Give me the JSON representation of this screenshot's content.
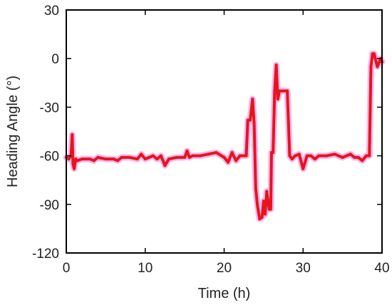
{
  "chart_data": {
    "type": "line",
    "title": "",
    "xlabel": "Time (h)",
    "ylabel": "Heading Angle (°)",
    "xlim": [
      0,
      40
    ],
    "ylim": [
      -120,
      30
    ],
    "xticks": [
      0,
      10,
      20,
      30,
      40
    ],
    "yticks": [
      -120,
      -90,
      -60,
      -30,
      0,
      30
    ],
    "xtick_labels": [
      "0",
      "10",
      "20",
      "30",
      "40"
    ],
    "ytick_labels": [
      "-120",
      "-90",
      "-60",
      "-30",
      "0",
      "30"
    ],
    "grid": false,
    "legend": "none",
    "series": [
      {
        "color": "#e8141b",
        "halo_color": "#f4b8f0",
        "x": [
          0,
          0.3,
          0.6,
          0.75,
          0.85,
          1.0,
          1.2,
          1.4,
          2,
          3,
          3.5,
          4,
          5,
          6,
          6.5,
          7,
          8,
          9,
          9.5,
          10,
          10.5,
          11,
          11.5,
          12,
          12.5,
          13,
          14,
          15,
          15.3,
          15.6,
          16,
          17,
          18,
          19,
          20,
          20.5,
          21,
          21.5,
          22,
          22.5,
          22.8,
          23.0,
          23.3,
          23.6,
          23.8,
          24.0,
          24.2,
          24.5,
          24.8,
          25.0,
          25.2,
          25.4,
          25.7,
          25.9,
          26.0,
          26.2,
          26.4,
          26.6,
          26.8,
          27.0,
          27.5,
          28.0,
          28.3,
          28.6,
          29,
          29.5,
          30,
          30.5,
          31,
          31.5,
          32,
          33,
          34,
          35,
          36,
          36.5,
          37,
          37.5,
          38,
          38.2,
          38.4,
          38.6,
          38.8,
          39.0,
          39.2,
          39.4,
          39.6,
          39.8,
          40
        ],
        "y": [
          -61,
          -62,
          -60,
          -47,
          -65,
          -68,
          -62,
          -63,
          -62,
          -62,
          -63,
          -61,
          -62,
          -62,
          -63,
          -61,
          -61,
          -62,
          -59,
          -62,
          -61,
          -60,
          -62,
          -60,
          -66,
          -62,
          -61,
          -61,
          -57,
          -61,
          -60,
          -60,
          -59,
          -58,
          -61,
          -64,
          -58,
          -63,
          -60,
          -60,
          -60,
          -38,
          -38,
          -25,
          -40,
          -80,
          -90,
          -99,
          -98,
          -88,
          -96,
          -82,
          -93,
          -93,
          -58,
          -58,
          -20,
          -4,
          -25,
          -20,
          -20,
          -20,
          -60,
          -62,
          -60,
          -59,
          -68,
          -60,
          -60,
          -62,
          -60,
          -60,
          -59,
          -61,
          -59,
          -61,
          -61,
          -63,
          -60,
          -60,
          -60,
          -5,
          3,
          3,
          -1,
          -5,
          -3,
          0,
          -2
        ]
      }
    ]
  }
}
